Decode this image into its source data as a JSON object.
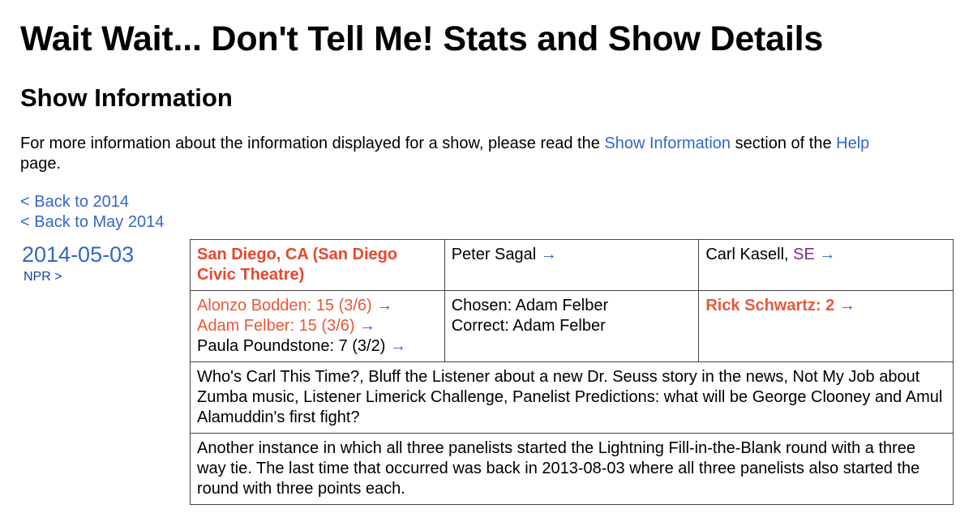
{
  "header": {
    "title": "Wait Wait... Don't Tell Me! Stats and Show Details",
    "section": "Show Information"
  },
  "intro": {
    "text_before": "For more information about the information displayed for a show, please read the ",
    "show_info_link": "Show Information",
    "text_middle": " section of the ",
    "help_link": "Help",
    "text_after": " page."
  },
  "nav": {
    "back_year": "< Back to 2014",
    "back_month": "< Back to May 2014"
  },
  "show": {
    "date": "2014-05-03",
    "npr_link": "NPR >",
    "location": "San Diego, CA (San Diego Civic Theatre)",
    "host": "Peter Sagal",
    "scorekeeper": "Carl Kasell",
    "scorekeeper_tag": "SE",
    "arrow": "→",
    "panelists": [
      {
        "text": "Alonzo Bodden: 15 (3/6)",
        "highlight": true
      },
      {
        "text": "Adam Felber: 15 (3/6)",
        "highlight": true
      },
      {
        "text": "Paula Poundstone: 7 (3/2)",
        "highlight": false
      }
    ],
    "bluff": {
      "chosen": "Chosen: Adam Felber",
      "correct": "Correct: Adam Felber"
    },
    "guest": "Rick Schwartz: 2",
    "description": "Who's Carl This Time?, Bluff the Listener about a new Dr. Seuss story in the news, Not My Job about Zumba music, Listener Limerick Challenge, Panelist Predictions: what will be George Clooney and Amul Alamuddin's first fight?",
    "notes": "Another instance in which all three panelists started the Lightning Fill-in-the-Blank round with a three way tie. The last time that occurred was back in 2013-08-03 where all three panelists also started the round with three points each."
  },
  "colors": {
    "link": "#3366cc",
    "location": "#e8472f",
    "highlight": "#e8593a",
    "visited": "#7a2a8c"
  }
}
